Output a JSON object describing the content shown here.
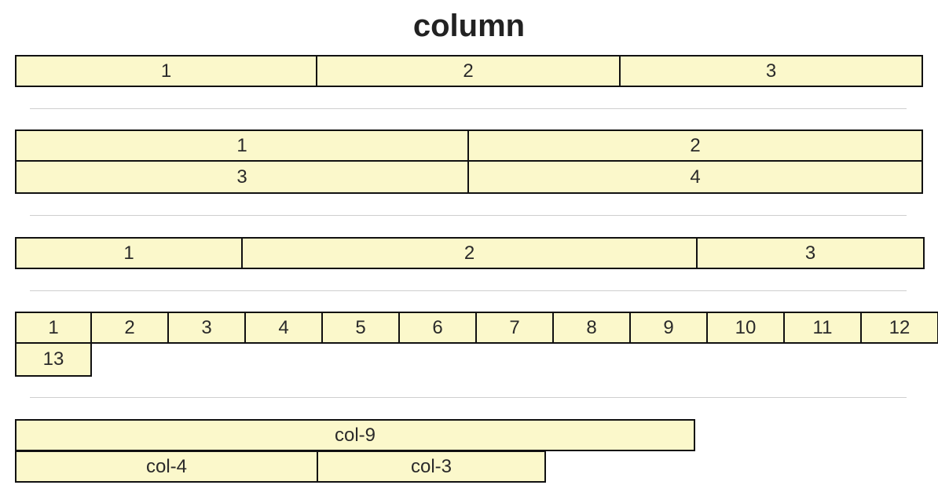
{
  "title": "column",
  "rows": {
    "equal_three": [
      "1",
      "2",
      "3"
    ],
    "equal_two_wrap": [
      "1",
      "2",
      "3",
      "4"
    ],
    "three_six_three": [
      "1",
      "2",
      "3"
    ],
    "twelve_wrap": [
      "1",
      "2",
      "3",
      "4",
      "5",
      "6",
      "7",
      "8",
      "9",
      "10",
      "11",
      "12",
      "13"
    ],
    "sized": {
      "first_line": [
        "col-9"
      ],
      "second_line": [
        "col-4",
        "col-3"
      ]
    }
  },
  "colors": {
    "cell_background": "#fbf8cb",
    "cell_border": "#111111",
    "divider": "#cfcfcf"
  }
}
